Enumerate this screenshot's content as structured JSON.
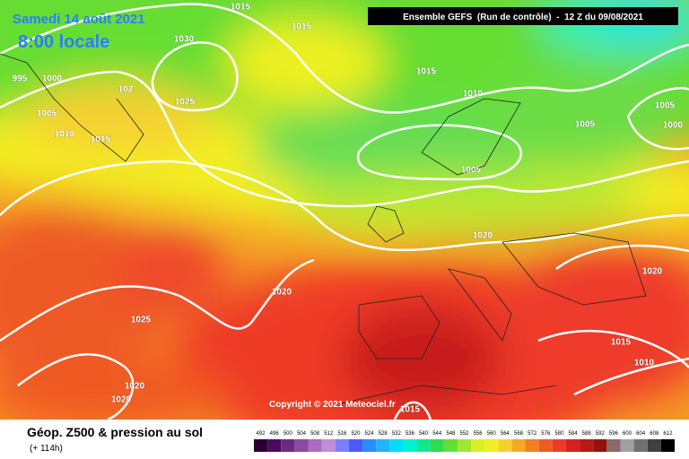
{
  "header": {
    "date": "Samedi 14 août 2021",
    "time": "8:00 locale",
    "model": "Ensemble GEFS  (Run de contrôle)  -  12 Z du 09/08/2021"
  },
  "map": {
    "copyright": "Copyright © 2021 Meteociel.fr",
    "isobar_labels": [
      "1015",
      "1015",
      "1030",
      "995",
      "1000",
      "102",
      "1025",
      "1005",
      "1010",
      "1015",
      "1015",
      "1010",
      "1005",
      "1000",
      "1005",
      "1005",
      "1020",
      "1020",
      "1020",
      "1025",
      "1015",
      "1010",
      "1020",
      "1020",
      "1015"
    ]
  },
  "footer": {
    "title": "Géop. Z500 & pression au sol",
    "subtitle": "(+ 114h)"
  },
  "scale": {
    "values": [
      492,
      496,
      500,
      504,
      508,
      512,
      516,
      520,
      524,
      528,
      532,
      536,
      540,
      544,
      548,
      552,
      556,
      560,
      564,
      568,
      572,
      576,
      580,
      584,
      588,
      592,
      596,
      600,
      604,
      608,
      612
    ]
  }
}
